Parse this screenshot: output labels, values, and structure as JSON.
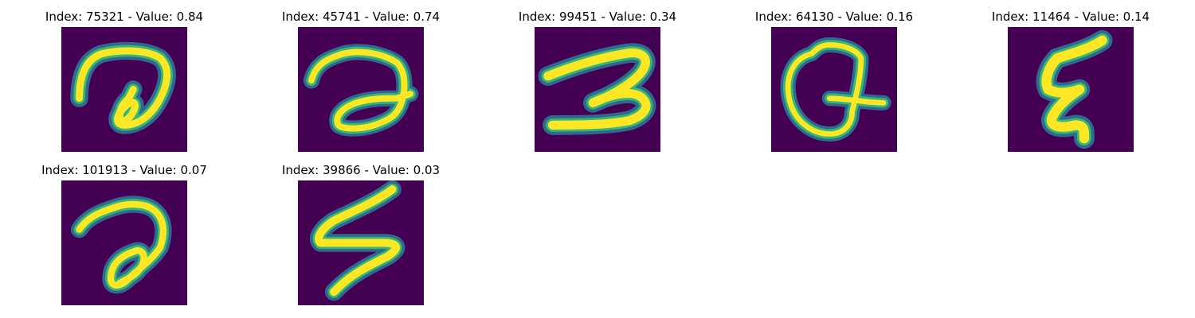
{
  "panels": [
    {
      "title": "Index: 75321 - Value: 0.84",
      "glyph": "a-cursive-glyph"
    },
    {
      "title": "Index: 45741 - Value: 0.74",
      "glyph": "a-cursive-glyph"
    },
    {
      "title": "Index: 99451 - Value: 0.34",
      "glyph": "three-glyph"
    },
    {
      "title": "Index: 64130 - Value: 0.16",
      "glyph": "q-glyph"
    },
    {
      "title": "Index: 11464 - Value: 0.14",
      "glyph": "sigma-glyph"
    },
    {
      "title": "Index: 101913 - Value: 0.07",
      "glyph": "a-cursive-glyph"
    },
    {
      "title": "Index: 39866 - Value: 0.03",
      "glyph": "s-glyph"
    }
  ],
  "colors": {
    "background": "#440154",
    "stroke_core": "#fde725",
    "stroke_edge": "#35b779",
    "stroke_halo": "#31688e"
  }
}
